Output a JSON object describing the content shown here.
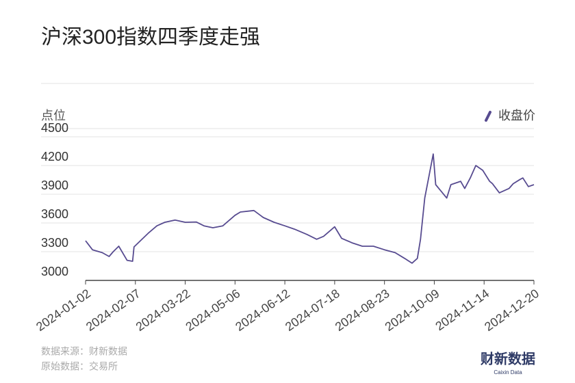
{
  "chart_data": {
    "type": "line",
    "title": "沪深300指数四季度走强",
    "y_label": "点位",
    "x": [
      "2024-01-02",
      "2024-01-07",
      "2024-01-14",
      "2024-01-19",
      "2024-01-22",
      "2024-01-26",
      "2024-02-01",
      "2024-02-05",
      "2024-02-06",
      "2024-02-19",
      "2024-02-26",
      "2024-03-04",
      "2024-03-13",
      "2024-03-22",
      "2024-04-01",
      "2024-04-08",
      "2024-04-16",
      "2024-04-25",
      "2024-05-06",
      "2024-05-10",
      "2024-05-20",
      "2024-05-27",
      "2024-06-04",
      "2024-06-12",
      "2024-06-19",
      "2024-06-28",
      "2024-07-05",
      "2024-07-10",
      "2024-07-18",
      "2024-07-23",
      "2024-07-31",
      "2024-08-07",
      "2024-08-15",
      "2024-08-23",
      "2024-09-02",
      "2024-09-11",
      "2024-09-18",
      "2024-09-23",
      "2024-09-26",
      "2024-09-30",
      "2024-10-08",
      "2024-10-10",
      "2024-10-14",
      "2024-10-18",
      "2024-10-21",
      "2024-10-28",
      "2024-10-31",
      "2024-11-04",
      "2024-11-08",
      "2024-11-13",
      "2024-11-18",
      "2024-11-20",
      "2024-11-25",
      "2024-12-02",
      "2024-12-05",
      "2024-12-10",
      "2024-12-12",
      "2024-12-16",
      "2024-12-20"
    ],
    "series": [
      {
        "name": "收盘价",
        "color": "#574b90",
        "values": [
          3414,
          3320,
          3290,
          3250,
          3300,
          3357,
          3210,
          3200,
          3350,
          3500,
          3570,
          3607,
          3630,
          3607,
          3610,
          3570,
          3550,
          3570,
          3680,
          3714,
          3730,
          3657,
          3607,
          3570,
          3535,
          3480,
          3430,
          3460,
          3560,
          3440,
          3390,
          3357,
          3357,
          3320,
          3290,
          3230,
          3180,
          3230,
          3430,
          3860,
          4320,
          4000,
          3930,
          3860,
          4000,
          4035,
          3960,
          4070,
          4200,
          4150,
          4035,
          4010,
          3915,
          3960,
          4010,
          4055,
          4070,
          3980,
          4000
        ]
      }
    ],
    "xlim": [
      "2024-01-02",
      "2024-12-20"
    ],
    "xticks": [
      "2024-01-02",
      "2024-02-07",
      "2024-03-22",
      "2024-05-06",
      "2024-06-12",
      "2024-07-18",
      "2024-08-23",
      "2024-10-09",
      "2024-11-14",
      "2024-12-20"
    ],
    "ylim": [
      3000,
      4500
    ],
    "yticks": [
      3000,
      3300,
      3600,
      3900,
      4200,
      4500
    ],
    "grid": true,
    "legend": "top-right"
  },
  "source": [
    "数据来源：财新数据",
    "原始数据：交易所"
  ],
  "logo": {
    "title": "财新数据",
    "subtitle": "Caixin Data"
  }
}
